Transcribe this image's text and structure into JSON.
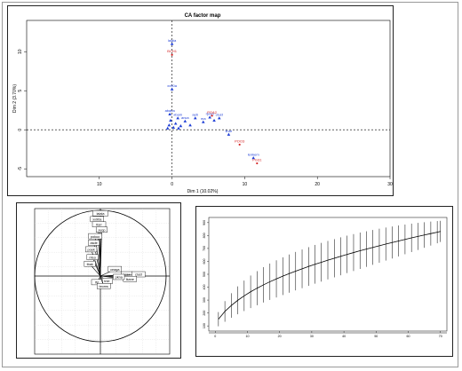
{
  "chart_data": [
    {
      "type": "scatter",
      "title": "CA factor map",
      "xlabel": "Dim 1 (10.02%)",
      "ylabel": "Dim 2 (3.70%)",
      "xlim": [
        -20,
        30
      ],
      "ylim": [
        -6,
        14
      ],
      "x_ticks": [
        "10",
        "0",
        "10",
        "20",
        "30"
      ],
      "y_ticks": [
        "-5",
        "0",
        "5",
        "10"
      ],
      "grid": false,
      "series": [
        {
          "color": "#1f3fd6",
          "marker": "triangle",
          "points": [
            {
              "x": 0,
              "y": 11,
              "label": "lalala"
            },
            {
              "x": 0,
              "y": 5.2,
              "label": "xx90a"
            },
            {
              "x": -0.3,
              "y": 2.0,
              "label": "ababa"
            },
            {
              "x": 0.8,
              "y": 1.5,
              "label": "xbam"
            },
            {
              "x": 1.8,
              "y": 1.1,
              "label": "anca"
            },
            {
              "x": 3.2,
              "y": 1.5,
              "label": "aeb"
            },
            {
              "x": 4.3,
              "y": 1.0,
              "label": "ma"
            },
            {
              "x": 5.2,
              "y": 1.6,
              "label": "rpnet"
            },
            {
              "x": 6.5,
              "y": 1.5,
              "label": "clust"
            },
            {
              "x": 7.8,
              "y": -0.6,
              "label": "linar"
            },
            {
              "x": 11.2,
              "y": -3.6,
              "label": "lenkem"
            },
            {
              "x": -0.4,
              "y": 0.6,
              "label": ""
            },
            {
              "x": 0.2,
              "y": 0.3,
              "label": ""
            },
            {
              "x": -0.6,
              "y": 0.2,
              "label": ""
            },
            {
              "x": 0.5,
              "y": 0.8,
              "label": ""
            },
            {
              "x": 1.2,
              "y": 0.5,
              "label": ""
            },
            {
              "x": 2.5,
              "y": 0.6,
              "label": ""
            },
            {
              "x": -0.2,
              "y": 1.2,
              "label": ""
            },
            {
              "x": 0.9,
              "y": 0.2,
              "label": ""
            },
            {
              "x": 5.8,
              "y": 1.2,
              "label": ""
            }
          ]
        },
        {
          "color": "#d42020",
          "marker": "dot",
          "points": [
            {
              "x": 0,
              "y": 9.6,
              "label": "BCH1"
            },
            {
              "x": 5.5,
              "y": 1.8,
              "label": "PGA2"
            },
            {
              "x": 9.3,
              "y": -1.9,
              "label": "POO3"
            },
            {
              "x": 11.7,
              "y": -4.3,
              "label": "PG31"
            }
          ]
        }
      ]
    },
    {
      "type": "line",
      "title": "",
      "xlabel": "",
      "ylabel": "",
      "variables": [
        {
          "x": 0,
          "y": 0.95,
          "label": "lalala"
        },
        {
          "x": -0.05,
          "y": 0.86,
          "label": "xx90a"
        },
        {
          "x": -0.02,
          "y": 0.78,
          "label": "ttsrr"
        },
        {
          "x": 0.02,
          "y": 0.7,
          "label": "xvop"
        },
        {
          "x": -0.08,
          "y": 0.6,
          "label": "pokuo"
        },
        {
          "x": -0.1,
          "y": 0.5,
          "label": "asde"
        },
        {
          "x": -0.14,
          "y": 0.4,
          "label": "poek"
        },
        {
          "x": -0.12,
          "y": 0.28,
          "label": "nfeo"
        },
        {
          "x": -0.16,
          "y": 0.18,
          "label": "tbak"
        },
        {
          "x": 0.22,
          "y": 0.1,
          "label": "ceaga"
        },
        {
          "x": 0.4,
          "y": 0.02,
          "label": "pcex"
        },
        {
          "x": 0.58,
          "y": 0.02,
          "label": "clust"
        },
        {
          "x": 0.45,
          "y": -0.05,
          "label": "lkane"
        },
        {
          "x": 0.28,
          "y": -0.02,
          "label": "pkna"
        },
        {
          "x": 0.1,
          "y": -0.08,
          "label": "tnle"
        },
        {
          "x": -0.05,
          "y": -0.1,
          "label": "ftrl"
        },
        {
          "x": 0.05,
          "y": -0.16,
          "label": "teoms"
        }
      ]
    },
    {
      "type": "line",
      "title": "",
      "xlabel": "",
      "ylabel": "",
      "x_ticks": [
        "0",
        "10",
        "20",
        "30",
        "40",
        "50",
        "60",
        "70"
      ],
      "y_ticks": [
        "100",
        "200",
        "300",
        "400",
        "500",
        "600",
        "700",
        "800",
        "900"
      ],
      "xlim": [
        -2,
        72
      ],
      "ylim": [
        60,
        940
      ],
      "series": [
        {
          "x": [
            1,
            3,
            5,
            7,
            9,
            11,
            13,
            15,
            17,
            19,
            21,
            23,
            25,
            27,
            29,
            31,
            33,
            35,
            37,
            39,
            41,
            43,
            45,
            47,
            49,
            51,
            53,
            55,
            57,
            59,
            61,
            63,
            65,
            67,
            69,
            70
          ],
          "y": [
            152,
            212,
            258,
            298,
            333,
            364,
            392,
            418,
            442,
            464,
            485,
            505,
            524,
            542,
            560,
            577,
            593,
            609,
            624,
            639,
            654,
            668,
            682,
            695,
            708,
            721,
            734,
            746,
            758,
            770,
            782,
            793,
            804,
            815,
            826,
            832
          ],
          "err": [
            55,
            80,
            95,
            108,
            118,
            126,
            132,
            137,
            141,
            144,
            146,
            148,
            149,
            150,
            150,
            150,
            150,
            149,
            148,
            147,
            145,
            143,
            141,
            138,
            135,
            132,
            128,
            124,
            120,
            115,
            110,
            105,
            99,
            93,
            86,
            82
          ]
        }
      ]
    }
  ]
}
